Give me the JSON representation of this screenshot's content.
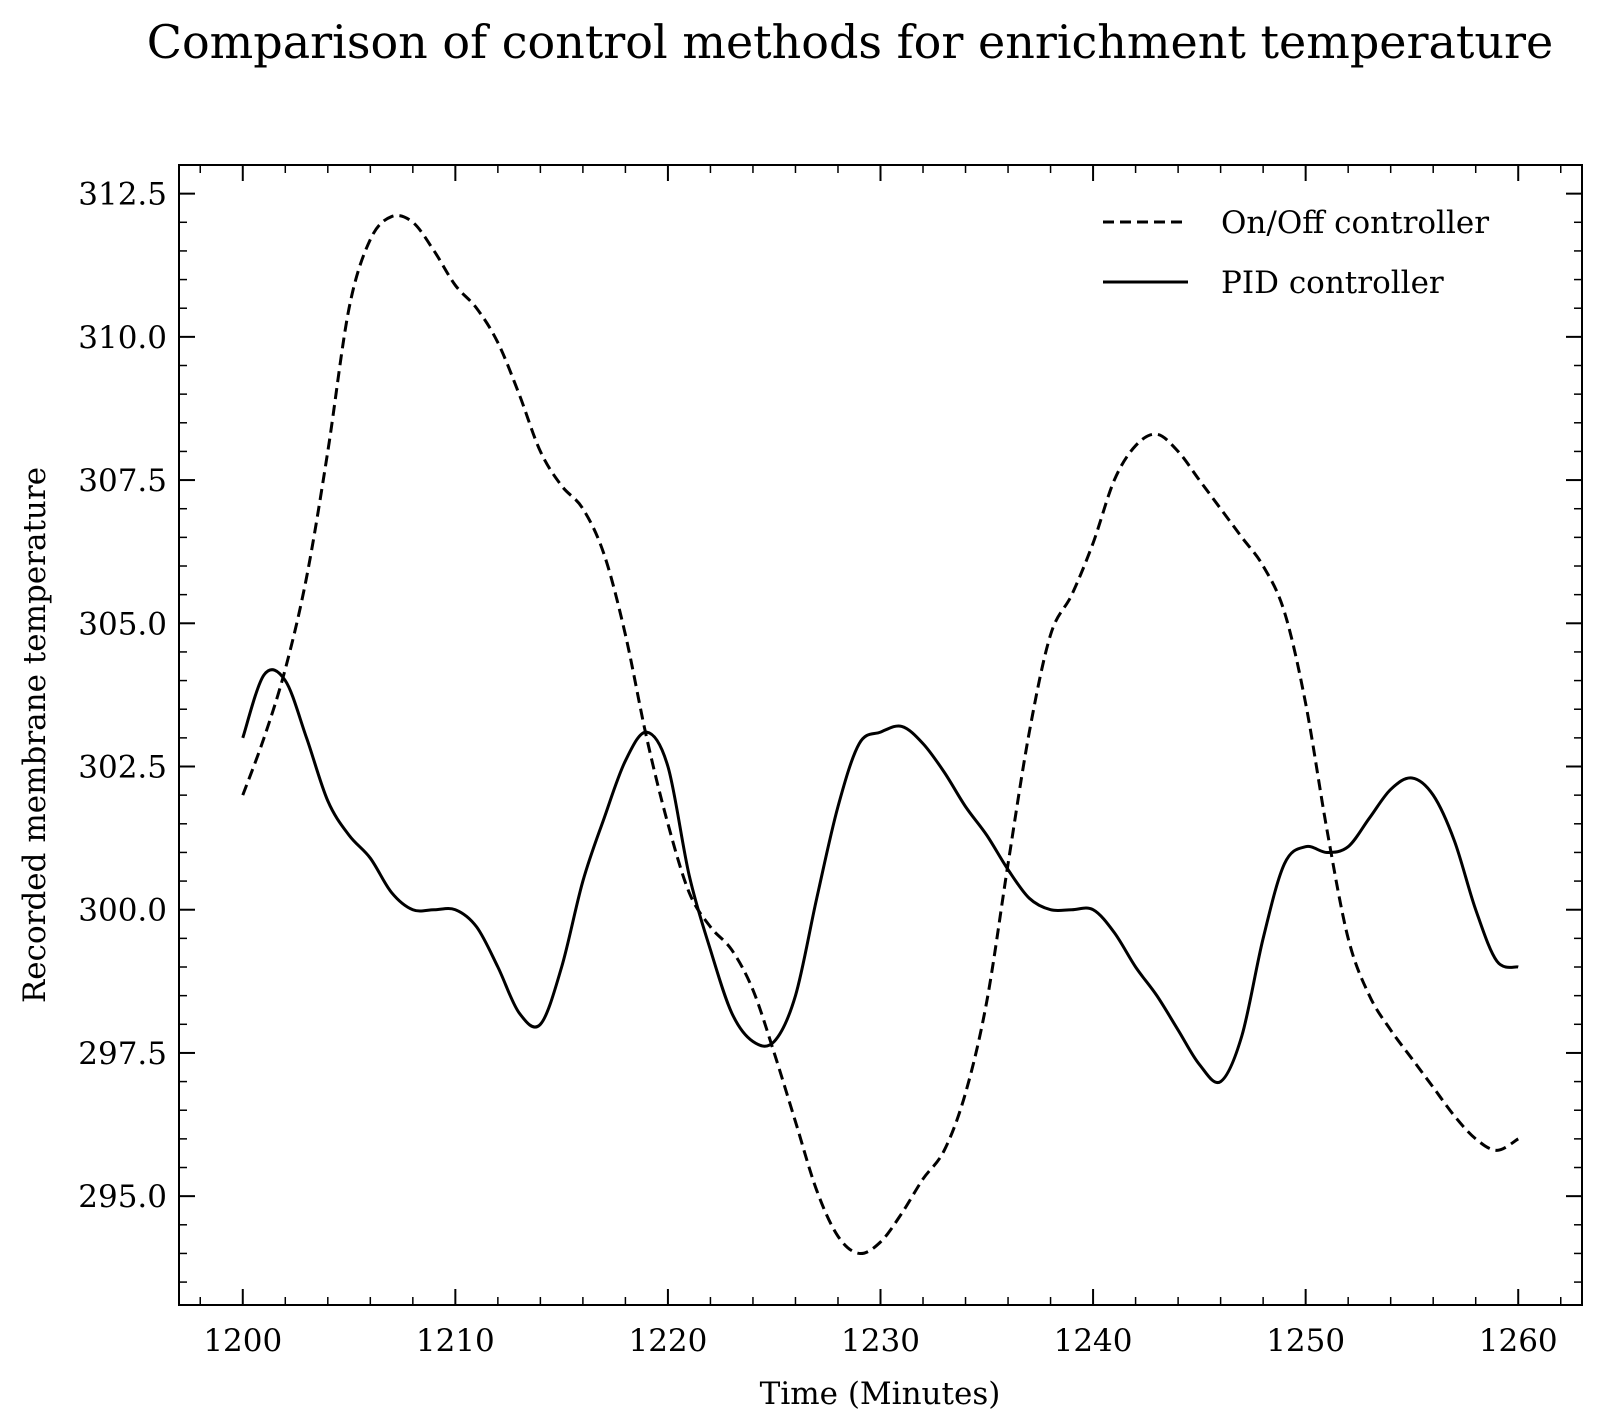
{
  "chart_data": {
    "type": "line",
    "title": "Comparison of control methods for enrichment temperature",
    "xlabel": "Time (Minutes)",
    "ylabel": "Recorded membrane temperature",
    "xlim": [
      1197,
      1263
    ],
    "ylim": [
      293.1,
      313.0
    ],
    "xticks": [
      1200,
      1210,
      1220,
      1230,
      1240,
      1250,
      1260
    ],
    "xtick_labels": [
      "1200",
      "1210",
      "1220",
      "1230",
      "1240",
      "1250",
      "1260"
    ],
    "yticks": [
      295.0,
      297.5,
      300.0,
      302.5,
      305.0,
      307.5,
      310.0,
      312.5
    ],
    "ytick_labels": [
      "295.0",
      "297.5",
      "300.0",
      "302.5",
      "305.0",
      "307.5",
      "310.0",
      "312.5"
    ],
    "grid": false,
    "legend_position": "top-right",
    "series": [
      {
        "name": "On/Off controller",
        "style": "dashed",
        "color": "#000000",
        "x": [
          1200,
          1201,
          1202,
          1203,
          1204,
          1205,
          1206,
          1207,
          1208,
          1209,
          1210,
          1211,
          1212,
          1213,
          1214,
          1215,
          1216,
          1217,
          1218,
          1219,
          1220,
          1221,
          1222,
          1223,
          1224,
          1225,
          1226,
          1227,
          1228,
          1229,
          1230,
          1231,
          1232,
          1233,
          1234,
          1235,
          1236,
          1237,
          1238,
          1239,
          1240,
          1241,
          1242,
          1243,
          1244,
          1245,
          1246,
          1247,
          1248,
          1249,
          1250,
          1251,
          1252,
          1253,
          1254,
          1255,
          1256,
          1257,
          1258,
          1259,
          1260
        ],
        "y": [
          302.0,
          303.0,
          304.2,
          305.8,
          308.0,
          310.5,
          311.7,
          312.1,
          312.0,
          311.5,
          310.9,
          310.5,
          309.9,
          309.0,
          308.0,
          307.4,
          307.0,
          306.2,
          304.8,
          303.0,
          301.5,
          300.3,
          299.7,
          299.3,
          298.6,
          297.5,
          296.3,
          295.1,
          294.3,
          294.0,
          294.2,
          294.7,
          295.3,
          295.8,
          296.8,
          298.4,
          300.8,
          303.1,
          304.8,
          305.5,
          306.4,
          307.5,
          308.1,
          308.3,
          308.0,
          307.5,
          307.0,
          306.5,
          306.0,
          305.2,
          303.6,
          301.4,
          299.5,
          298.5,
          297.9,
          297.4,
          296.9,
          296.4,
          296.0,
          295.8,
          296.0
        ]
      },
      {
        "name": "PID controller",
        "style": "solid",
        "color": "#000000",
        "x": [
          1200,
          1201,
          1202,
          1203,
          1204,
          1205,
          1206,
          1207,
          1208,
          1209,
          1210,
          1211,
          1212,
          1213,
          1214,
          1215,
          1216,
          1217,
          1218,
          1219,
          1220,
          1221,
          1222,
          1223,
          1224,
          1225,
          1226,
          1227,
          1228,
          1229,
          1230,
          1231,
          1232,
          1233,
          1234,
          1235,
          1236,
          1237,
          1238,
          1239,
          1240,
          1241,
          1242,
          1243,
          1244,
          1245,
          1246,
          1247,
          1248,
          1249,
          1250,
          1251,
          1252,
          1253,
          1254,
          1255,
          1256,
          1257,
          1258,
          1259,
          1260
        ],
        "y": [
          303.0,
          304.1,
          304.0,
          303.0,
          301.9,
          301.3,
          300.9,
          300.3,
          300.0,
          300.0,
          300.0,
          299.7,
          299.0,
          298.2,
          298.0,
          299.0,
          300.5,
          301.6,
          302.6,
          303.1,
          302.5,
          300.6,
          299.3,
          298.2,
          297.7,
          297.7,
          298.5,
          300.2,
          301.8,
          302.9,
          303.1,
          303.2,
          302.9,
          302.4,
          301.8,
          301.3,
          300.7,
          300.2,
          300.0,
          300.0,
          300.0,
          299.6,
          299.0,
          298.5,
          297.9,
          297.3,
          297.0,
          297.8,
          299.5,
          300.8,
          301.1,
          301.0,
          301.1,
          301.6,
          302.1,
          302.3,
          302.0,
          301.2,
          300.0,
          299.1,
          299.0
        ]
      }
    ]
  }
}
